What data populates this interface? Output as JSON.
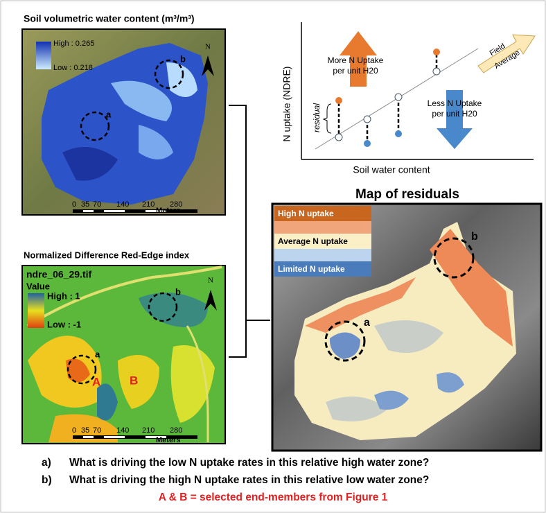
{
  "soil_map": {
    "title": "Soil volumetric water content (m³/m³)",
    "legend_high": "High : 0.265",
    "legend_low": "Low : 0.218",
    "north": "N",
    "zone_a": "a",
    "zone_b": "b",
    "scale": [
      "0",
      "35",
      "70",
      "140",
      "210",
      "280"
    ],
    "scale_unit": "Meters"
  },
  "scatter": {
    "y_label": "N uptake (NDRE)",
    "x_label": "Soil water content",
    "up_arrow": [
      "More N Uptake",
      "per unit H20"
    ],
    "down_arrow": [
      "Less N Uptake",
      "per unit H20"
    ],
    "trend_label": [
      "Field",
      "Average"
    ],
    "residual_label": "residual"
  },
  "residual_map": {
    "title": "Map of residuals",
    "legend": [
      "High N uptake",
      "Average N uptake",
      "Limited N uptake"
    ],
    "zone_a": "a",
    "zone_b": "b"
  },
  "ndre_map": {
    "title": "Normalized Difference Red-Edge index",
    "file": "ndre_06_29.tif",
    "legend_title": "Value",
    "legend_high": "High : 1",
    "legend_low": "Low : -1",
    "north": "N",
    "zone_a": "a",
    "zone_b": "b",
    "member_a": "A",
    "member_b": "B",
    "scale": [
      "0",
      "35",
      "70",
      "140",
      "210",
      "280"
    ],
    "scale_unit": "Meters"
  },
  "questions": [
    {
      "label": "a)",
      "text": "What is driving the low N uptake rates in this relative high water zone?"
    },
    {
      "label": "b)",
      "text": "What is driving the high N uptake rates in this relative low water zone?"
    }
  ],
  "footnote": "A & B = selected end-members from Figure 1"
}
